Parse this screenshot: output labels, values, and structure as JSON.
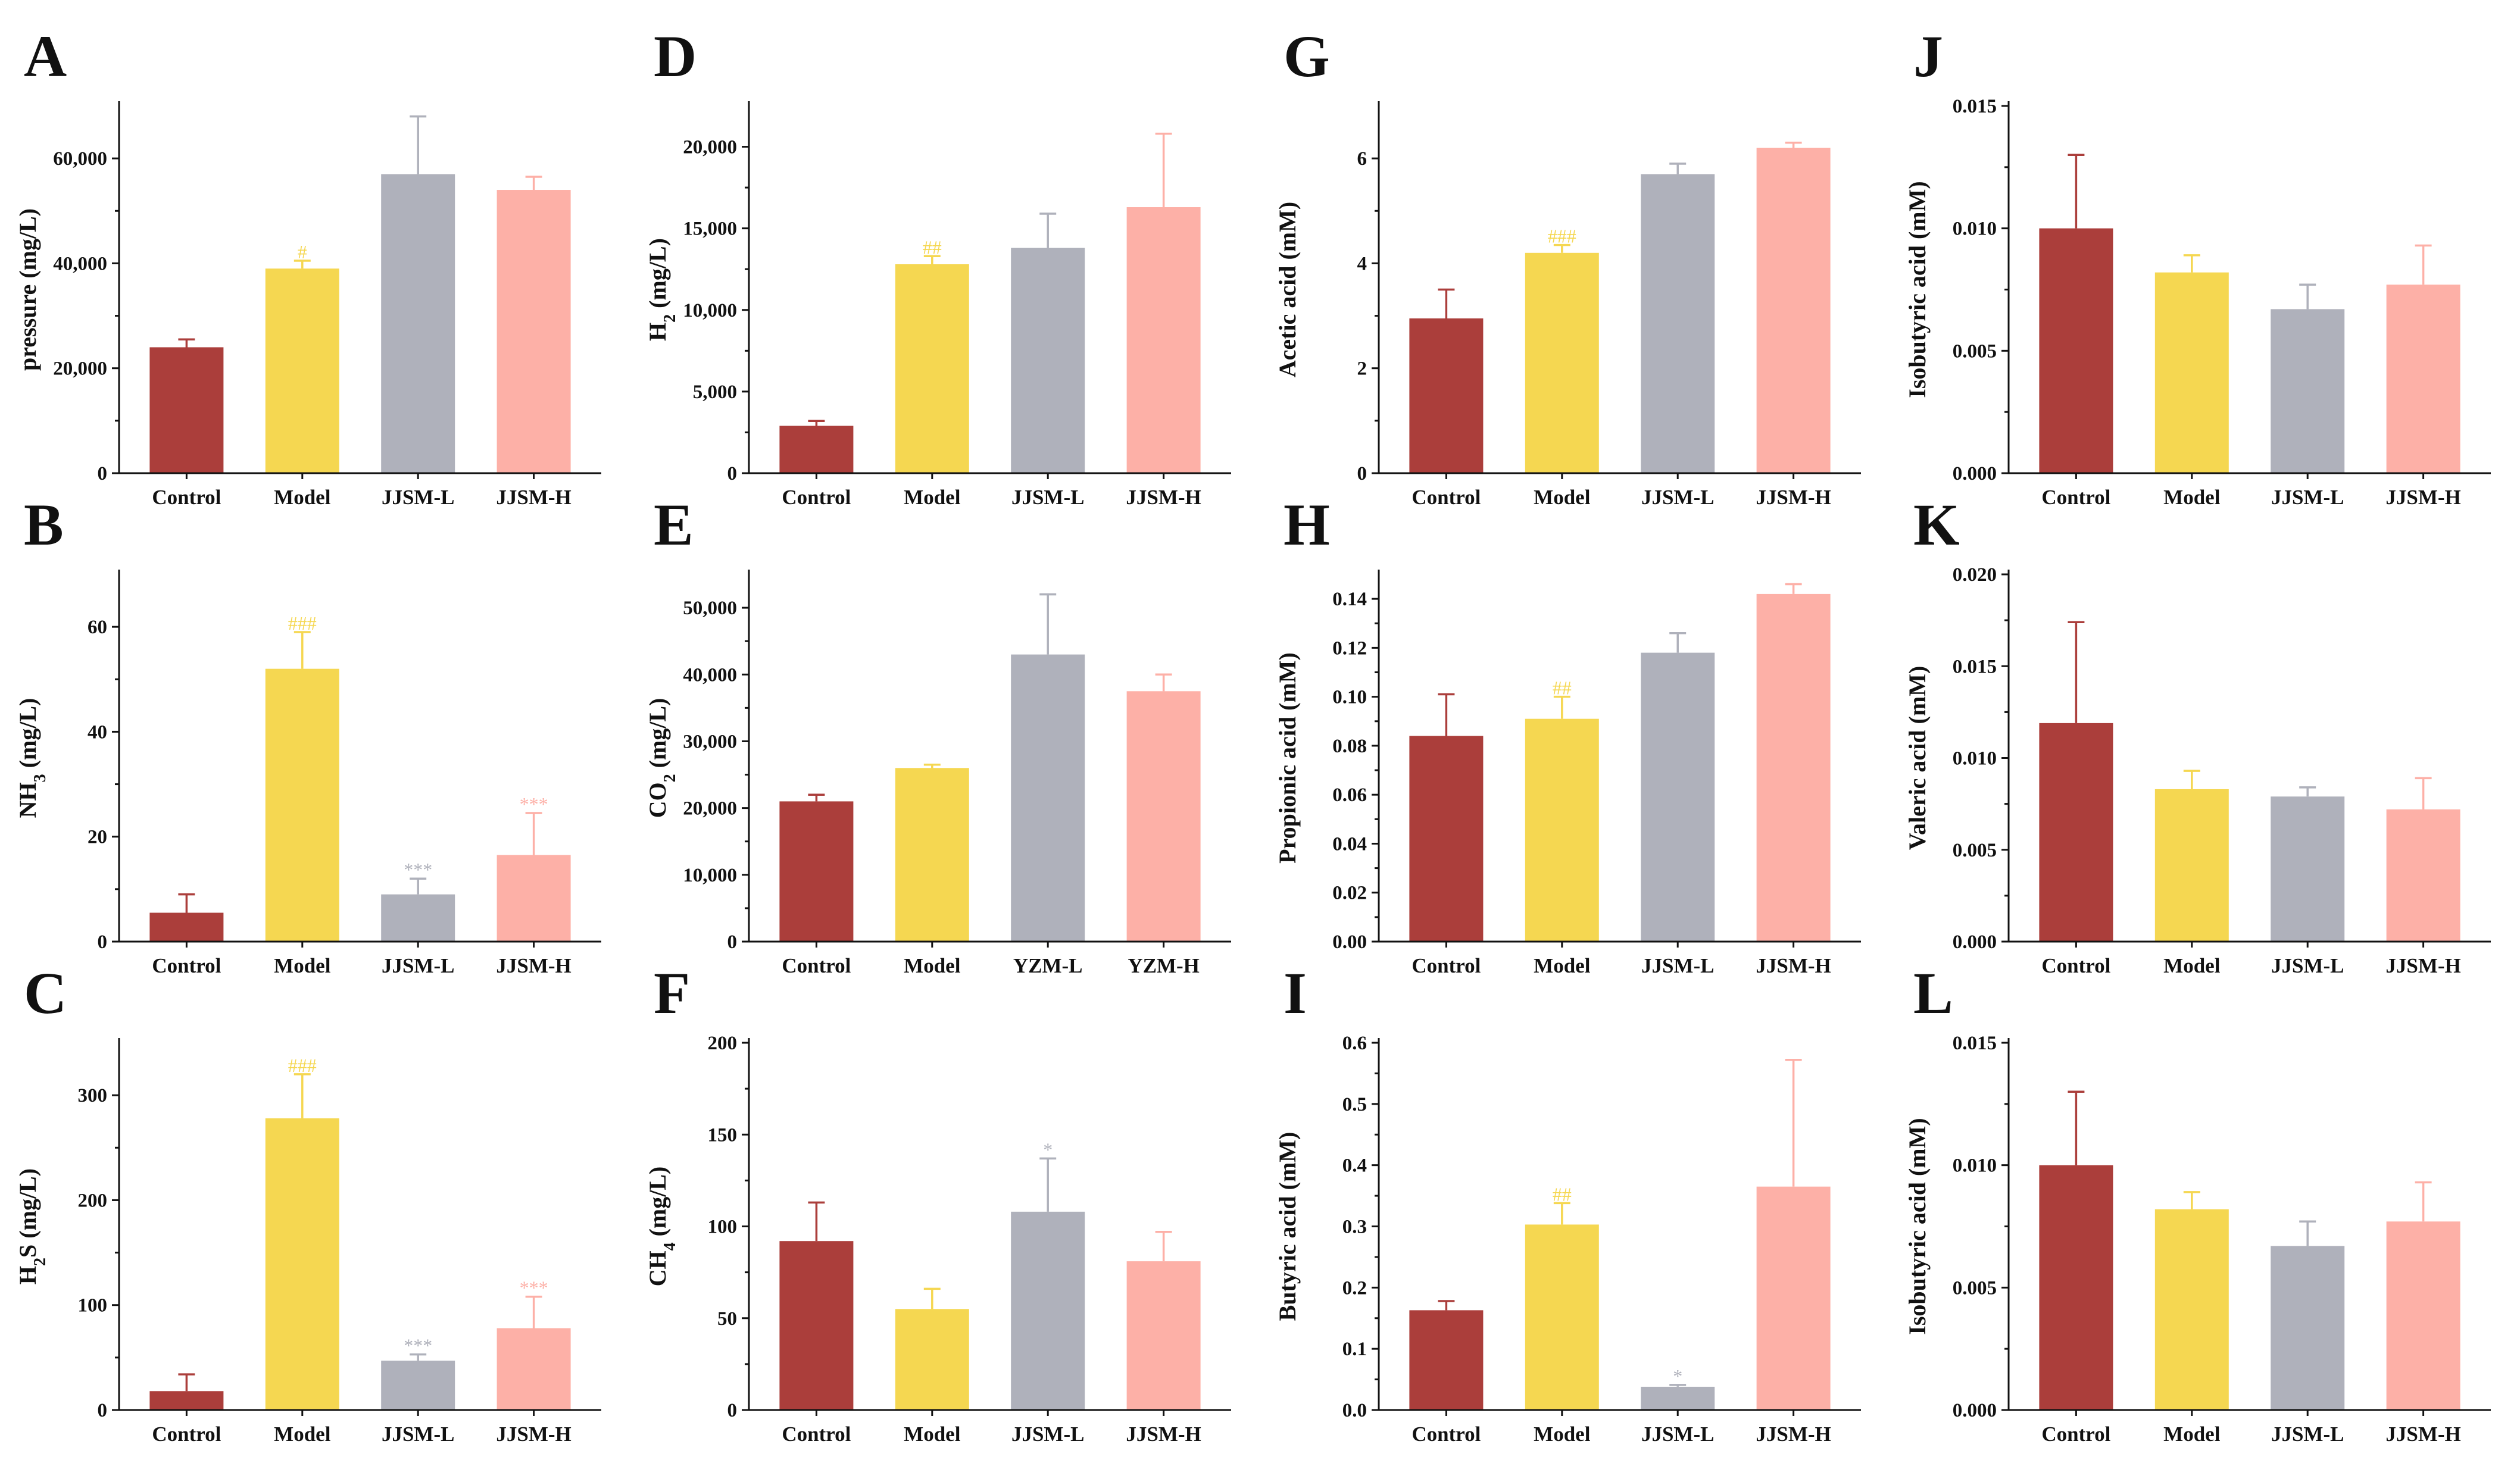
{
  "colors": {
    "Control": "#ab3e3b",
    "Model": "#f5d751",
    "JJSM-L": "#afb1bb",
    "JJSM-H": "#fdb0a7",
    "axis": "#111111"
  },
  "chart_data": [
    {
      "letter": "A",
      "type": "bar",
      "ylabel": "pressure (mg/L)",
      "categories": [
        "Control",
        "Model",
        "JJSM-L",
        "JJSM-H"
      ],
      "values": [
        24000,
        39000,
        57000,
        54000
      ],
      "errors": [
        1500,
        1500,
        11000,
        2500
      ],
      "significance": [
        "",
        "#",
        "",
        ""
      ],
      "ylim": [
        0,
        70000
      ],
      "yticks": [
        0,
        20000,
        40000,
        60000
      ],
      "ytick_labels": [
        "0",
        "20,000",
        "40,000",
        "60,000"
      ]
    },
    {
      "letter": "B",
      "type": "bar",
      "ylabel": "NH₃ (mg/L)",
      "categories": [
        "Control",
        "Model",
        "JJSM-L",
        "JJSM-H"
      ],
      "values": [
        5.5,
        52,
        9,
        16.5
      ],
      "errors": [
        3.5,
        7,
        3,
        8
      ],
      "significance": [
        "",
        "###",
        "***",
        "***"
      ],
      "ylim": [
        0,
        70
      ],
      "yticks": [
        0,
        20,
        40,
        60
      ],
      "ytick_labels": [
        "0",
        "20",
        "40",
        "60"
      ]
    },
    {
      "letter": "C",
      "type": "bar",
      "ylabel": "H₂S (mg/L)",
      "categories": [
        "Control",
        "Model",
        "JJSM-L",
        "JJSM-H"
      ],
      "values": [
        18,
        278,
        47,
        78
      ],
      "errors": [
        16,
        42,
        6,
        30
      ],
      "significance": [
        "",
        "###",
        "***",
        "***"
      ],
      "ylim": [
        0,
        350
      ],
      "yticks": [
        0,
        100,
        200,
        300
      ],
      "ytick_labels": [
        "0",
        "100",
        "200",
        "300"
      ]
    },
    {
      "letter": "D",
      "type": "bar",
      "ylabel": "H₂ (mg/L)",
      "categories": [
        "Control",
        "Model",
        "JJSM-L",
        "JJSM-H"
      ],
      "values": [
        2900,
        12800,
        13800,
        16300
      ],
      "errors": [
        300,
        500,
        2100,
        4500
      ],
      "significance": [
        "",
        "##",
        "",
        ""
      ],
      "ylim": [
        0,
        22500
      ],
      "yticks": [
        0,
        5000,
        10000,
        15000,
        20000
      ],
      "ytick_labels": [
        "0",
        "5,000",
        "10,000",
        "15,000",
        "20,000"
      ]
    },
    {
      "letter": "E",
      "type": "bar",
      "ylabel": "CO₂ (mg/L)",
      "categories": [
        "Control",
        "Model",
        "YZM-L",
        "YZM-H"
      ],
      "values": [
        21000,
        26000,
        43000,
        37500
      ],
      "errors": [
        1000,
        500,
        9000,
        2500
      ],
      "significance": [
        "",
        "",
        "",
        ""
      ],
      "ylim": [
        0,
        55000
      ],
      "yticks": [
        0,
        10000,
        20000,
        30000,
        40000,
        50000
      ],
      "ytick_labels": [
        "0",
        "10,000",
        "20,000",
        "30,000",
        "40,000",
        "50,000"
      ]
    },
    {
      "letter": "F",
      "type": "bar",
      "ylabel": "CH₄ (mg/L)",
      "categories": [
        "Control",
        "Model",
        "JJSM-L",
        "JJSM-H"
      ],
      "values": [
        92,
        55,
        108,
        81
      ],
      "errors": [
        21,
        11,
        29,
        16
      ],
      "significance": [
        "",
        "",
        "*",
        ""
      ],
      "ylim": [
        0,
        200
      ],
      "yticks": [
        0,
        50,
        100,
        150,
        200
      ],
      "ytick_labels": [
        "0",
        "50",
        "100",
        "150",
        "200"
      ]
    },
    {
      "letter": "G",
      "type": "bar",
      "ylabel": "Acetic acid (mM)",
      "categories": [
        "Control",
        "Model",
        "JJSM-L",
        "JJSM-H"
      ],
      "values": [
        2.95,
        4.2,
        5.7,
        6.2
      ],
      "errors": [
        0.55,
        0.15,
        0.2,
        0.1
      ],
      "significance": [
        "",
        "###",
        "",
        ""
      ],
      "ylim": [
        0,
        7
      ],
      "yticks": [
        0,
        2,
        4,
        6
      ],
      "ytick_labels": [
        "0",
        "2",
        "4",
        "6"
      ]
    },
    {
      "letter": "H",
      "type": "bar",
      "ylabel": "Propionic acid (mM)",
      "categories": [
        "Control",
        "Model",
        "JJSM-L",
        "JJSM-H"
      ],
      "values": [
        0.084,
        0.091,
        0.118,
        0.142
      ],
      "errors": [
        0.017,
        0.009,
        0.008,
        0.004
      ],
      "significance": [
        "",
        "##",
        "",
        ""
      ],
      "ylim": [
        0,
        0.15
      ],
      "yticks": [
        0,
        0.02,
        0.04,
        0.06,
        0.08,
        0.1,
        0.12,
        0.14
      ],
      "ytick_labels": [
        "0.00",
        "0.02",
        "0.04",
        "0.06",
        "0.08",
        "0.10",
        "0.12",
        "0.14"
      ]
    },
    {
      "letter": "I",
      "type": "bar",
      "ylabel": "Butyric acid (mM)",
      "categories": [
        "Control",
        "Model",
        "JJSM-L",
        "JJSM-H"
      ],
      "values": [
        0.163,
        0.303,
        0.038,
        0.365
      ],
      "errors": [
        0.015,
        0.035,
        0.003,
        0.207
      ],
      "significance": [
        "",
        "##",
        "*",
        ""
      ],
      "ylim": [
        0,
        0.6
      ],
      "yticks": [
        0,
        0.1,
        0.2,
        0.3,
        0.4,
        0.5,
        0.6
      ],
      "ytick_labels": [
        "0.0",
        "0.1",
        "0.2",
        "0.3",
        "0.4",
        "0.5",
        "0.6"
      ]
    },
    {
      "letter": "J",
      "type": "bar",
      "ylabel": "Isobutyric acid (mM)",
      "categories": [
        "Control",
        "Model",
        "JJSM-L",
        "JJSM-H"
      ],
      "values": [
        0.01,
        0.0082,
        0.0067,
        0.0077
      ],
      "errors": [
        0.003,
        0.0007,
        0.001,
        0.0016
      ],
      "significance": [
        "",
        "",
        "",
        ""
      ],
      "ylim": [
        0,
        0.015
      ],
      "yticks": [
        0,
        0.005,
        0.01,
        0.015
      ],
      "ytick_labels": [
        "0.000",
        "0.005",
        "0.010",
        "0.015"
      ]
    },
    {
      "letter": "K",
      "type": "bar",
      "ylabel": "Valeric acid (mM)",
      "categories": [
        "Control",
        "Model",
        "JJSM-L",
        "JJSM-H"
      ],
      "values": [
        0.0119,
        0.0083,
        0.0079,
        0.0072
      ],
      "errors": [
        0.0055,
        0.001,
        0.0005,
        0.0017
      ],
      "significance": [
        "",
        "",
        "",
        ""
      ],
      "ylim": [
        0,
        0.02
      ],
      "yticks": [
        0,
        0.005,
        0.01,
        0.015,
        0.02
      ],
      "ytick_labels": [
        "0.000",
        "0.005",
        "0.010",
        "0.015",
        "0.020"
      ]
    },
    {
      "letter": "L",
      "type": "bar",
      "ylabel": "Isobutyric acid (mM)",
      "categories": [
        "Control",
        "Model",
        "JJSM-L",
        "JJSM-H"
      ],
      "values": [
        0.01,
        0.0082,
        0.0067,
        0.0077
      ],
      "errors": [
        0.003,
        0.0007,
        0.001,
        0.0016
      ],
      "significance": [
        "",
        "",
        "",
        ""
      ],
      "ylim": [
        0,
        0.015
      ],
      "yticks": [
        0,
        0.005,
        0.01,
        0.015
      ],
      "ytick_labels": [
        "0.000",
        "0.005",
        "0.010",
        "0.015"
      ]
    }
  ]
}
